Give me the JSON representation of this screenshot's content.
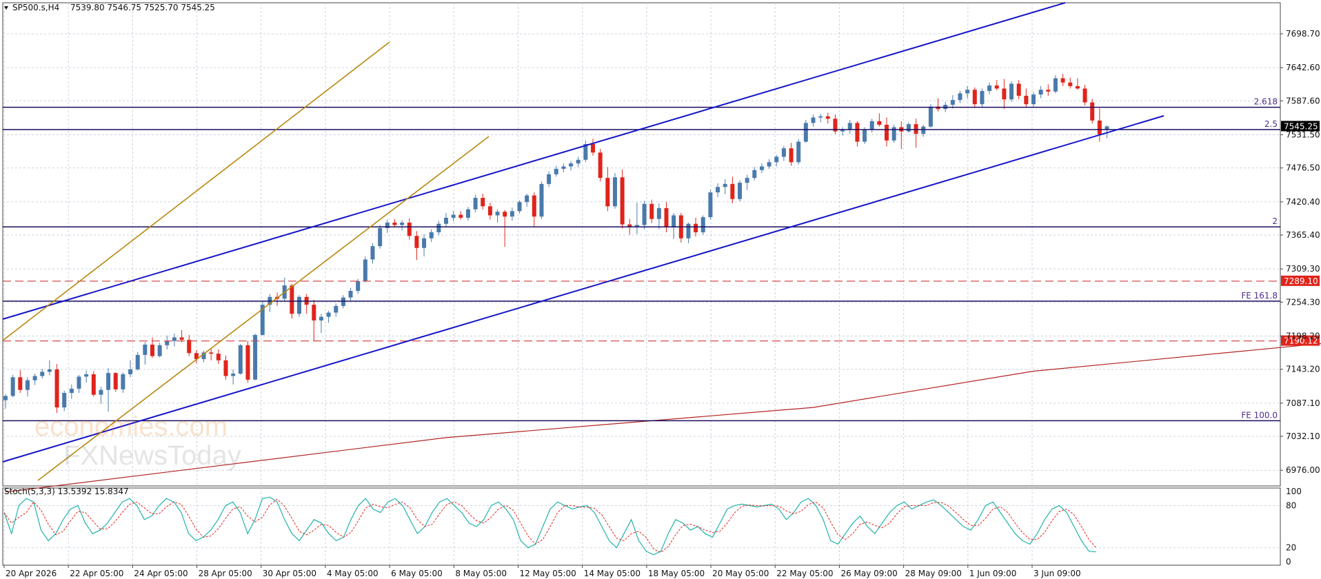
{
  "header": {
    "symbol_label": "SP500.s,H4",
    "ohlc_label": "7539.80 7546.75 7525.70 7545.25"
  },
  "stoch_label": "Stoch(5,3,3) 13.5392 15.8347",
  "watermark": {
    "line1": "economies.com",
    "line2": "FXNewsToday"
  },
  "colors": {
    "bull": "#4a7aac",
    "bear": "#e0241b",
    "channel": "#1414c8",
    "gold": "#b8860b",
    "ma": "#b22222",
    "level": "#1a0a5e",
    "dashed": "#d24b4b",
    "stoch_main": "#20b2aa",
    "stoch_signal": "#e0241b"
  },
  "chart_data": {
    "type": "candlestick",
    "title": "SP500.s,H4",
    "ylim": [
      6950,
      7750
    ],
    "price_ticks": [
      "7698.70",
      "7642.60",
      "7587.60",
      "7531.50",
      "7476.50",
      "7420.40",
      "7365.40",
      "7309.30",
      "7254.30",
      "7198.20",
      "7143.20",
      "7087.10",
      "7032.10",
      "6976.00"
    ],
    "x_ticks": [
      "20 Apr 2026",
      "22 Apr 05:00",
      "24 Apr 05:00",
      "28 Apr 05:00",
      "30 Apr 05:00",
      "4 May 05:00",
      "6 May 05:00",
      "8 May 05:00",
      "12 May 05:00",
      "14 May 05:00",
      "18 May 05:00",
      "20 May 05:00",
      "22 May 05:00",
      "26 May 09:00",
      "28 May 09:00",
      "1 Jun 09:00",
      "3 Jun 09:00"
    ],
    "last_price": "7545.25",
    "levels": [
      {
        "price": 7577,
        "label": "2.618",
        "style": "solid"
      },
      {
        "price": 7540,
        "label": "2.5",
        "style": "solid"
      },
      {
        "price": 7379,
        "label": "2",
        "style": "solid"
      },
      {
        "price": 7289.1,
        "label": "7289.10",
        "style": "dashed"
      },
      {
        "price": 7256,
        "label": "FE 161.8",
        "style": "solid"
      },
      {
        "price": 7190.12,
        "label": "7190.12",
        "style": "dashed"
      },
      {
        "price": 7058,
        "label": "FE 100.0",
        "style": "solid"
      }
    ],
    "candles": [
      [
        7092,
        7102,
        7078,
        7099
      ],
      [
        7099,
        7134,
        7097,
        7130
      ],
      [
        7130,
        7142,
        7104,
        7109
      ],
      [
        7109,
        7130,
        7098,
        7125
      ],
      [
        7125,
        7136,
        7117,
        7132
      ],
      [
        7132,
        7144,
        7128,
        7139
      ],
      [
        7139,
        7158,
        7133,
        7143
      ],
      [
        7143,
        7152,
        7071,
        7080
      ],
      [
        7080,
        7108,
        7074,
        7104
      ],
      [
        7104,
        7118,
        7094,
        7111
      ],
      [
        7111,
        7134,
        7104,
        7131
      ],
      [
        7131,
        7141,
        7121,
        7135
      ],
      [
        7135,
        7140,
        7098,
        7101
      ],
      [
        7101,
        7114,
        7086,
        7109
      ],
      [
        7109,
        7145,
        7073,
        7137
      ],
      [
        7137,
        7138,
        7106,
        7110
      ],
      [
        7110,
        7138,
        7104,
        7135
      ],
      [
        7135,
        7158,
        7130,
        7143
      ],
      [
        7143,
        7172,
        7141,
        7167
      ],
      [
        7167,
        7188,
        7151,
        7184
      ],
      [
        7184,
        7196,
        7162,
        7165
      ],
      [
        7165,
        7187,
        7163,
        7183
      ],
      [
        7183,
        7199,
        7176,
        7190
      ],
      [
        7190,
        7202,
        7181,
        7196
      ],
      [
        7196,
        7208,
        7188,
        7192
      ],
      [
        7192,
        7200,
        7165,
        7170
      ],
      [
        7170,
        7175,
        7153,
        7160
      ],
      [
        7160,
        7174,
        7155,
        7171
      ],
      [
        7171,
        7178,
        7158,
        7169
      ],
      [
        7169,
        7176,
        7152,
        7158
      ],
      [
        7158,
        7166,
        7126,
        7132
      ],
      [
        7132,
        7143,
        7118,
        7136
      ],
      [
        7136,
        7185,
        7134,
        7183
      ],
      [
        7183,
        7190,
        7121,
        7126
      ],
      [
        7126,
        7202,
        7125,
        7200
      ],
      [
        7200,
        7256,
        7199,
        7250
      ],
      [
        7250,
        7268,
        7238,
        7263
      ],
      [
        7263,
        7270,
        7248,
        7260
      ],
      [
        7260,
        7295,
        7256,
        7282
      ],
      [
        7282,
        7285,
        7227,
        7235
      ],
      [
        7235,
        7266,
        7230,
        7263
      ],
      [
        7263,
        7268,
        7235,
        7250
      ],
      [
        7250,
        7258,
        7190,
        7224
      ],
      [
        7224,
        7235,
        7203,
        7230
      ],
      [
        7230,
        7240,
        7220,
        7237
      ],
      [
        7237,
        7252,
        7230,
        7248
      ],
      [
        7248,
        7266,
        7244,
        7262
      ],
      [
        7262,
        7278,
        7257,
        7273
      ],
      [
        7273,
        7293,
        7268,
        7289
      ],
      [
        7289,
        7330,
        7287,
        7325
      ],
      [
        7325,
        7352,
        7318,
        7347
      ],
      [
        7347,
        7382,
        7343,
        7377
      ],
      [
        7377,
        7391,
        7369,
        7386
      ],
      [
        7386,
        7392,
        7378,
        7382
      ],
      [
        7382,
        7390,
        7373,
        7386
      ],
      [
        7386,
        7393,
        7358,
        7364
      ],
      [
        7364,
        7372,
        7324,
        7344
      ],
      [
        7344,
        7367,
        7330,
        7360
      ],
      [
        7360,
        7375,
        7354,
        7370
      ],
      [
        7370,
        7389,
        7365,
        7384
      ],
      [
        7384,
        7402,
        7378,
        7394
      ],
      [
        7394,
        7405,
        7388,
        7399
      ],
      [
        7399,
        7405,
        7391,
        7394
      ],
      [
        7394,
        7412,
        7389,
        7408
      ],
      [
        7408,
        7432,
        7403,
        7427
      ],
      [
        7427,
        7434,
        7408,
        7413
      ],
      [
        7413,
        7419,
        7391,
        7398
      ],
      [
        7398,
        7408,
        7386,
        7404
      ],
      [
        7404,
        7407,
        7346,
        7396
      ],
      [
        7396,
        7411,
        7389,
        7405
      ],
      [
        7405,
        7423,
        7401,
        7420
      ],
      [
        7420,
        7434,
        7412,
        7431
      ],
      [
        7431,
        7436,
        7380,
        7396
      ],
      [
        7396,
        7454,
        7392,
        7450
      ],
      [
        7450,
        7471,
        7445,
        7466
      ],
      [
        7466,
        7480,
        7462,
        7475
      ],
      [
        7475,
        7484,
        7469,
        7479
      ],
      [
        7479,
        7488,
        7472,
        7484
      ],
      [
        7484,
        7495,
        7478,
        7490
      ],
      [
        7490,
        7522,
        7486,
        7516
      ],
      [
        7516,
        7525,
        7497,
        7502
      ],
      [
        7502,
        7508,
        7454,
        7460
      ],
      [
        7460,
        7478,
        7405,
        7413
      ],
      [
        7413,
        7468,
        7409,
        7461
      ],
      [
        7461,
        7474,
        7376,
        7383
      ],
      [
        7383,
        7392,
        7366,
        7379
      ],
      [
        7379,
        7419,
        7367,
        7382
      ],
      [
        7382,
        7422,
        7375,
        7417
      ],
      [
        7417,
        7424,
        7385,
        7392
      ],
      [
        7392,
        7418,
        7375,
        7410
      ],
      [
        7410,
        7420,
        7370,
        7378
      ],
      [
        7378,
        7402,
        7359,
        7398
      ],
      [
        7398,
        7402,
        7353,
        7360
      ],
      [
        7360,
        7386,
        7352,
        7384
      ],
      [
        7384,
        7394,
        7363,
        7370
      ],
      [
        7370,
        7398,
        7366,
        7395
      ],
      [
        7395,
        7440,
        7391,
        7436
      ],
      [
        7436,
        7451,
        7428,
        7445
      ],
      [
        7445,
        7458,
        7433,
        7450
      ],
      [
        7450,
        7462,
        7418,
        7425
      ],
      [
        7425,
        7456,
        7421,
        7452
      ],
      [
        7452,
        7465,
        7440,
        7460
      ],
      [
        7460,
        7478,
        7456,
        7473
      ],
      [
        7473,
        7484,
        7468,
        7479
      ],
      [
        7479,
        7491,
        7475,
        7486
      ],
      [
        7486,
        7498,
        7479,
        7495
      ],
      [
        7495,
        7513,
        7488,
        7509
      ],
      [
        7509,
        7518,
        7480,
        7486
      ],
      [
        7486,
        7524,
        7482,
        7520
      ],
      [
        7520,
        7556,
        7518,
        7551
      ],
      [
        7551,
        7565,
        7545,
        7560
      ],
      [
        7560,
        7566,
        7552,
        7562
      ],
      [
        7562,
        7568,
        7550,
        7558
      ],
      [
        7558,
        7565,
        7533,
        7537
      ],
      [
        7537,
        7544,
        7530,
        7540
      ],
      [
        7540,
        7556,
        7533,
        7551
      ],
      [
        7551,
        7554,
        7512,
        7520
      ],
      [
        7520,
        7544,
        7516,
        7540
      ],
      [
        7540,
        7558,
        7535,
        7554
      ],
      [
        7554,
        7567,
        7545,
        7548
      ],
      [
        7548,
        7560,
        7512,
        7522
      ],
      [
        7522,
        7548,
        7518,
        7544
      ],
      [
        7544,
        7554,
        7508,
        7537
      ],
      [
        7537,
        7552,
        7535,
        7549
      ],
      [
        7549,
        7558,
        7510,
        7533
      ],
      [
        7533,
        7548,
        7528,
        7545
      ],
      [
        7545,
        7582,
        7543,
        7578
      ],
      [
        7578,
        7592,
        7570,
        7574
      ],
      [
        7574,
        7586,
        7569,
        7581
      ],
      [
        7581,
        7597,
        7575,
        7589
      ],
      [
        7589,
        7604,
        7584,
        7600
      ],
      [
        7600,
        7612,
        7592,
        7606
      ],
      [
        7606,
        7610,
        7576,
        7582
      ],
      [
        7582,
        7608,
        7576,
        7604
      ],
      [
        7604,
        7618,
        7598,
        7613
      ],
      [
        7613,
        7622,
        7605,
        7608
      ],
      [
        7608,
        7624,
        7574,
        7590
      ],
      [
        7590,
        7620,
        7586,
        7616
      ],
      [
        7616,
        7622,
        7590,
        7596
      ],
      [
        7596,
        7608,
        7576,
        7582
      ],
      [
        7582,
        7602,
        7578,
        7598
      ],
      [
        7598,
        7612,
        7592,
        7606
      ],
      [
        7606,
        7615,
        7596,
        7603
      ],
      [
        7603,
        7630,
        7600,
        7625
      ],
      [
        7625,
        7632,
        7612,
        7618
      ],
      [
        7618,
        7626,
        7608,
        7612
      ],
      [
        7612,
        7625,
        7606,
        7608
      ],
      [
        7608,
        7614,
        7580,
        7585
      ],
      [
        7585,
        7591,
        7550,
        7555
      ],
      [
        7555,
        7575,
        7520,
        7532
      ],
      [
        7539.8,
        7546.75,
        7525.7,
        7545.25
      ]
    ],
    "ma": [
      [
        0,
        6940
      ],
      [
        60,
        7030
      ],
      [
        110,
        7080
      ],
      [
        140,
        7140
      ],
      [
        200,
        7210
      ],
      [
        240,
        7270
      ],
      [
        260,
        7290
      ],
      [
        300,
        7315
      ],
      [
        340,
        7340
      ],
      [
        400,
        7370
      ],
      [
        424,
        7390
      ],
      [
        450,
        7420
      ],
      [
        518,
        7468
      ],
      [
        540,
        7477
      ]
    ],
    "stochastic": {
      "ylim": [
        0,
        100
      ],
      "ticks": [
        100,
        80,
        20,
        0
      ],
      "main": [
        70,
        40,
        80,
        90,
        85,
        45,
        30,
        40,
        60,
        75,
        80,
        55,
        40,
        45,
        55,
        70,
        85,
        90,
        80,
        60,
        65,
        80,
        90,
        85,
        70,
        40,
        30,
        35,
        45,
        60,
        80,
        85,
        70,
        40,
        60,
        90,
        92,
        85,
        60,
        40,
        30,
        45,
        60,
        55,
        40,
        30,
        35,
        60,
        80,
        90,
        75,
        70,
        85,
        90,
        80,
        60,
        40,
        50,
        70,
        85,
        90,
        80,
        70,
        55,
        50,
        60,
        80,
        85,
        75,
        60,
        30,
        20,
        25,
        50,
        75,
        85,
        80,
        75,
        78,
        80,
        70,
        50,
        30,
        20,
        40,
        60,
        30,
        15,
        10,
        15,
        40,
        60,
        55,
        45,
        50,
        40,
        35,
        55,
        75,
        80,
        82,
        80,
        78,
        80,
        82,
        75,
        60,
        70,
        85,
        90,
        80,
        60,
        30,
        25,
        40,
        55,
        65,
        50,
        40,
        55,
        70,
        80,
        85,
        75,
        80,
        85,
        88,
        80,
        70,
        60,
        50,
        45,
        60,
        80,
        85,
        70,
        55,
        40,
        30,
        25,
        40,
        60,
        75,
        80,
        70,
        50,
        30,
        15,
        14
      ]
    }
  }
}
